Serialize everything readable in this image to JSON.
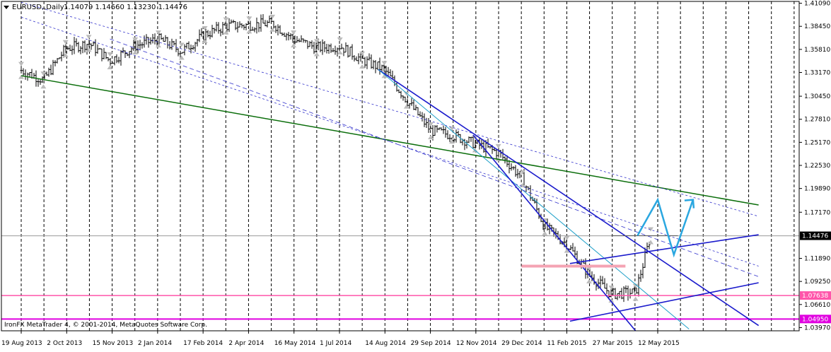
{
  "header": {
    "symbol_label": "EURUSD,,Daily",
    "ohlc_label": "1.14079 1.14660 1.13230 1.14476"
  },
  "footer": {
    "copyright": "IronFX MetaTrader 4, © 2001-2014, MetaQuotes Software Corp."
  },
  "colors": {
    "background": "#ffffff",
    "grid": "#000000",
    "candle": "#000000",
    "green_trend": "#0b6e0b",
    "blue_trend": "#1a1acc",
    "cyan_arrow": "#2aa7e0",
    "pink_level": "#ff55aa",
    "magenta_level": "#e000e0",
    "support_pink": "#f4a3b3",
    "price_label_bg": "#000000"
  },
  "chart_data": {
    "type": "line",
    "title": "EURUSD Daily",
    "x_ticks": [
      "19 Aug 2013",
      "2 Oct 2013",
      "15 Nov 2013",
      "2 Jan 2014",
      "17 Feb 2014",
      "2 Apr 2014",
      "16 May 2014",
      "1 Jul 2014",
      "14 Aug 2014",
      "29 Sep 2014",
      "12 Nov 2014",
      "29 Dec 2014",
      "11 Feb 2015",
      "27 Mar 2015",
      "12 May 2015"
    ],
    "y_ticks": [
      1.4109,
      1.3845,
      1.3581,
      1.3317,
      1.3045,
      1.2781,
      1.2517,
      1.2253,
      1.1989,
      1.1717,
      1.1189,
      1.0925,
      1.0661,
      1.0397
    ],
    "ylim": [
      1.036,
      1.413
    ],
    "current_price": 1.14476,
    "levels": [
      {
        "name": "current",
        "value": 1.14476,
        "label": "1.14476"
      },
      {
        "name": "pink",
        "value": 1.07638,
        "label": "1.07638"
      },
      {
        "name": "magenta",
        "value": 1.0495,
        "label": "1.04950"
      }
    ],
    "series": [
      {
        "name": "close",
        "x": [
          "2013-08-19",
          "2013-09-10",
          "2013-10-02",
          "2013-10-25",
          "2013-11-15",
          "2013-12-10",
          "2014-01-02",
          "2014-01-25",
          "2014-02-17",
          "2014-03-10",
          "2014-04-02",
          "2014-04-25",
          "2014-05-16",
          "2014-06-08",
          "2014-07-01",
          "2014-07-23",
          "2014-08-14",
          "2014-09-05",
          "2014-09-29",
          "2014-10-20",
          "2014-11-12",
          "2014-12-05",
          "2014-12-29",
          "2015-01-20",
          "2015-02-11",
          "2015-03-05",
          "2015-03-27",
          "2015-04-20",
          "2015-05-05"
        ],
        "y": [
          1.334,
          1.323,
          1.359,
          1.365,
          1.345,
          1.362,
          1.37,
          1.356,
          1.375,
          1.385,
          1.386,
          1.388,
          1.37,
          1.36,
          1.362,
          1.346,
          1.335,
          1.3,
          1.265,
          1.26,
          1.25,
          1.24,
          1.21,
          1.155,
          1.135,
          1.1,
          1.078,
          1.08,
          1.1448
        ]
      }
    ]
  }
}
